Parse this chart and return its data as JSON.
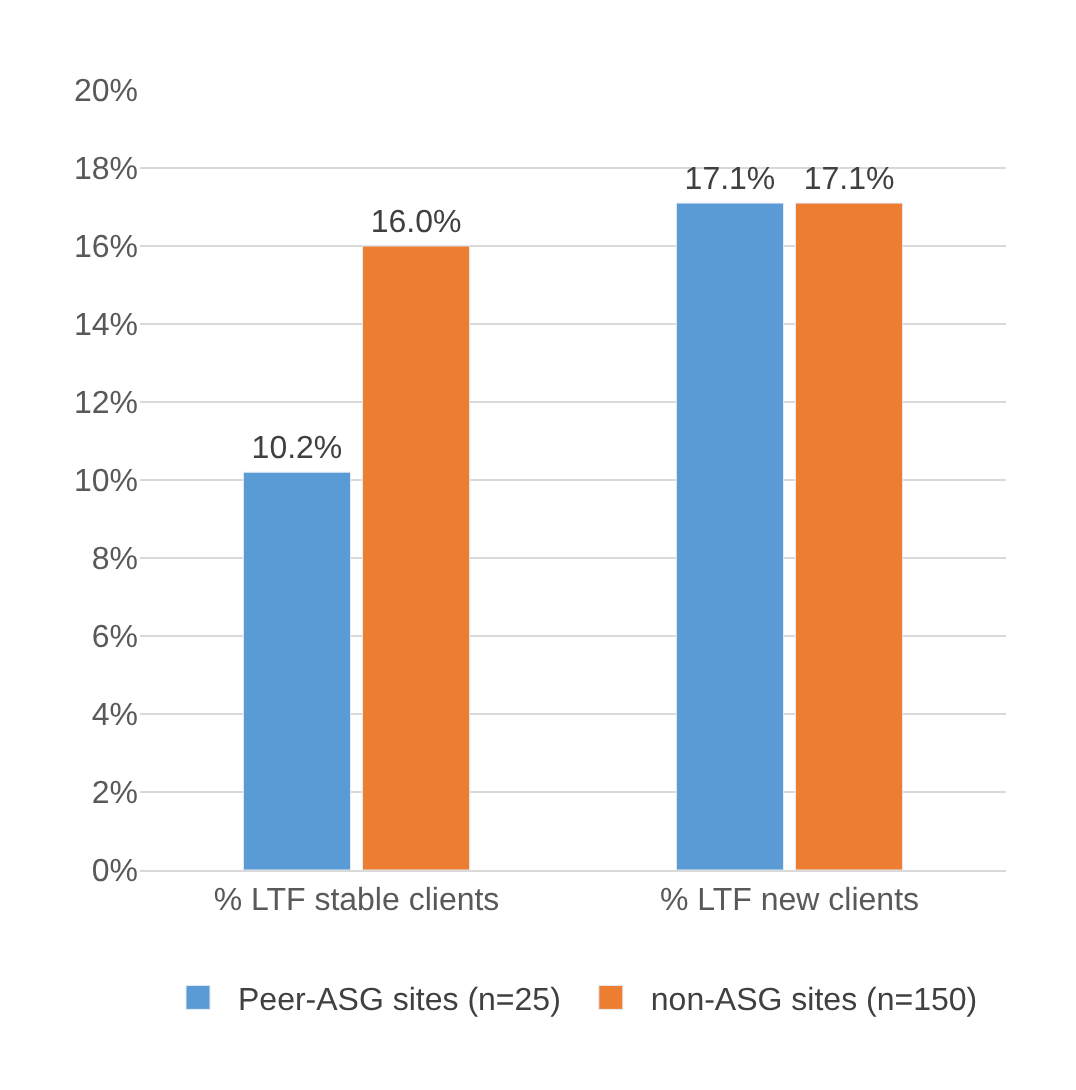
{
  "chart_data": {
    "type": "bar",
    "categories": [
      "% LTF stable clients",
      "% LTF new clients"
    ],
    "series": [
      {
        "name": "Peer-ASG sites (n=25)",
        "color": "#5b9bd5",
        "values": [
          10.2,
          17.1
        ],
        "value_labels": [
          "10.2%",
          "17.1%"
        ]
      },
      {
        "name": "non-ASG sites (n=150)",
        "color": "#ed7d31",
        "values": [
          16.0,
          17.1
        ],
        "value_labels": [
          "16.0%",
          "17.1%"
        ]
      }
    ],
    "ylim": [
      0,
      20
    ],
    "yticks": [
      {
        "value": 0,
        "label": "0%"
      },
      {
        "value": 2,
        "label": "2%"
      },
      {
        "value": 4,
        "label": "4%"
      },
      {
        "value": 6,
        "label": "6%"
      },
      {
        "value": 8,
        "label": "8%"
      },
      {
        "value": 10,
        "label": "10%"
      },
      {
        "value": 12,
        "label": "12%"
      },
      {
        "value": 14,
        "label": "14%"
      },
      {
        "value": 16,
        "label": "16%"
      },
      {
        "value": 18,
        "label": "18%"
      },
      {
        "value": 20,
        "label": "20%"
      }
    ],
    "grid": "y",
    "legend": "bottom"
  }
}
